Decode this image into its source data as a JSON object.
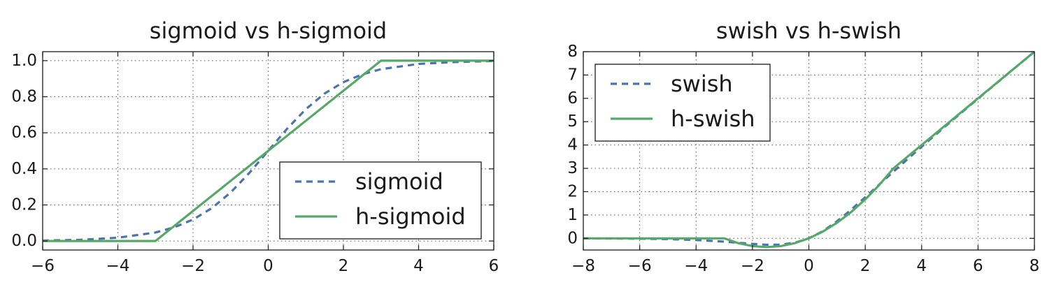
{
  "colors": {
    "dashed_series": "#4C72B0",
    "solid_series": "#55A868",
    "axes": "#1a1a1a",
    "grid": "#555555"
  },
  "chart_data": [
    {
      "type": "line",
      "title": "sigmoid vs h-sigmoid",
      "xlabel": "",
      "ylabel": "",
      "xlim": [
        -6,
        6
      ],
      "ylim": [
        -0.05,
        1.05
      ],
      "xticks": [
        -6,
        -4,
        -2,
        0,
        2,
        4,
        6
      ],
      "xtick_labels": [
        "−6",
        "−4",
        "−2",
        "0",
        "2",
        "4",
        "6"
      ],
      "yticks": [
        0.0,
        0.2,
        0.4,
        0.6,
        0.8,
        1.0
      ],
      "ytick_labels": [
        "0.0",
        "0.2",
        "0.4",
        "0.6",
        "0.8",
        "1.0"
      ],
      "grid": true,
      "legend_position": "lower-right",
      "series": [
        {
          "name": "sigmoid",
          "style": "dashed",
          "color": "#4C72B0",
          "x": [
            -6,
            -5,
            -4,
            -3,
            -2.5,
            -2,
            -1.5,
            -1,
            -0.5,
            0,
            0.5,
            1,
            1.5,
            2,
            2.5,
            3,
            4,
            5,
            6
          ],
          "y": [
            0.0025,
            0.0067,
            0.018,
            0.047,
            0.076,
            0.119,
            0.182,
            0.269,
            0.378,
            0.5,
            0.622,
            0.731,
            0.818,
            0.881,
            0.924,
            0.953,
            0.982,
            0.993,
            0.998
          ]
        },
        {
          "name": "h-sigmoid",
          "style": "solid",
          "color": "#55A868",
          "x": [
            -6,
            -3,
            3,
            6
          ],
          "y": [
            0,
            0,
            1,
            1
          ]
        }
      ]
    },
    {
      "type": "line",
      "title": "swish vs h-swish",
      "xlabel": "",
      "ylabel": "",
      "xlim": [
        -8,
        8
      ],
      "ylim": [
        -0.5,
        8
      ],
      "xticks": [
        -8,
        -6,
        -4,
        -2,
        0,
        2,
        4,
        6,
        8
      ],
      "xtick_labels": [
        "−8",
        "−6",
        "−4",
        "−2",
        "0",
        "2",
        "4",
        "6",
        "8"
      ],
      "yticks": [
        0,
        1,
        2,
        3,
        4,
        5,
        6,
        7,
        8
      ],
      "ytick_labels": [
        "0",
        "1",
        "2",
        "3",
        "4",
        "5",
        "6",
        "7",
        "8"
      ],
      "grid": true,
      "legend_position": "upper-left",
      "series": [
        {
          "name": "swish",
          "style": "dashed",
          "color": "#4C72B0",
          "x": [
            -8,
            -7,
            -6,
            -5,
            -4,
            -3,
            -2.5,
            -2,
            -1.5,
            -1,
            -0.5,
            0,
            0.5,
            1,
            1.5,
            2,
            2.5,
            3,
            4,
            5,
            6,
            7,
            8
          ],
          "y": [
            -0.003,
            -0.006,
            -0.015,
            -0.033,
            -0.072,
            -0.142,
            -0.19,
            -0.238,
            -0.273,
            -0.269,
            -0.189,
            0,
            0.311,
            0.731,
            1.227,
            1.762,
            2.31,
            2.858,
            3.928,
            4.967,
            5.985,
            6.994,
            7.997
          ]
        },
        {
          "name": "h-swish",
          "style": "solid",
          "color": "#55A868",
          "x": [
            -8,
            -3,
            -2.5,
            -2,
            -1.5,
            -1,
            -0.5,
            0,
            0.5,
            1,
            1.5,
            2,
            2.5,
            3,
            8
          ],
          "y": [
            0,
            0,
            -0.208,
            -0.333,
            -0.375,
            -0.333,
            -0.208,
            0,
            0.292,
            0.667,
            1.125,
            1.667,
            2.292,
            3,
            8
          ]
        }
      ]
    }
  ]
}
